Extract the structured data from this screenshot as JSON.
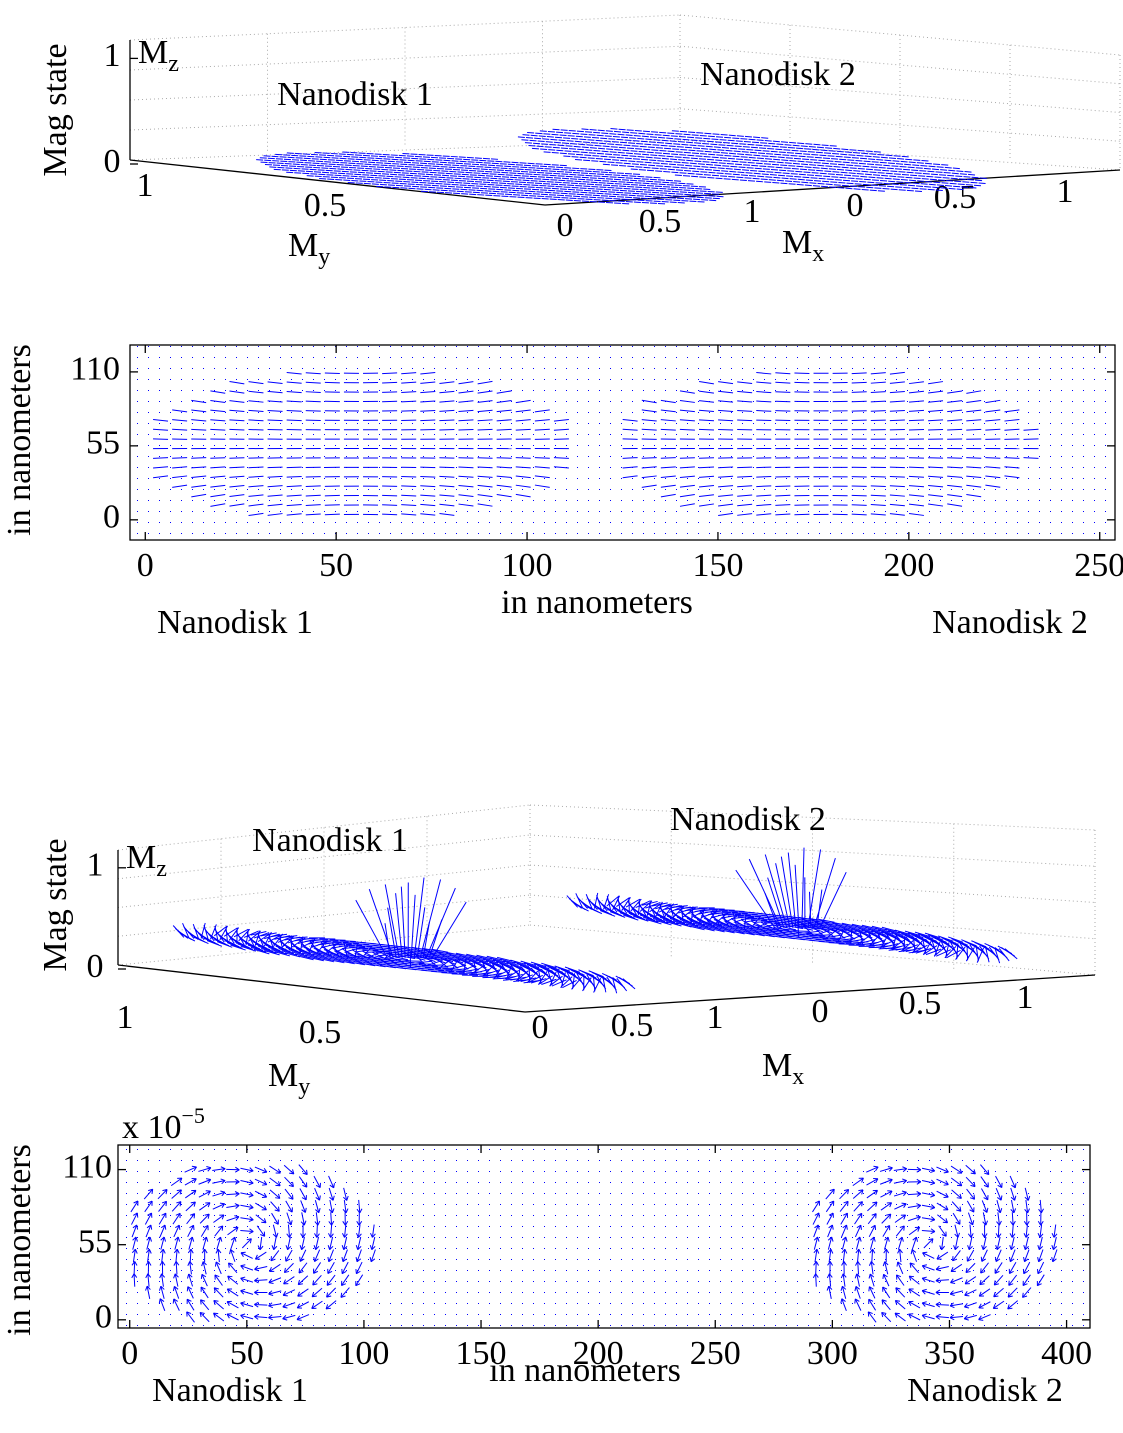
{
  "chart_data": [
    {
      "type": "quiver3d",
      "color": "#0000ff",
      "ylabel": "Mag state",
      "zlabel": {
        "base": "M",
        "sub": "z"
      },
      "zticks": [
        0,
        1
      ],
      "mylabel": {
        "base": "M",
        "sub": "y"
      },
      "myticks": [
        1,
        0.5
      ],
      "mxlabel": {
        "base": "M",
        "sub": "x"
      },
      "mxticks": [
        0,
        0.5,
        1,
        0,
        0.5,
        1
      ],
      "annotations": [
        "Nanodisk 1",
        "Nanodisk 2"
      ]
    },
    {
      "type": "quiver",
      "color": "#0000ff",
      "xlabel": "in nanometers",
      "ylabel": "in nanometers",
      "xlim": [
        -4,
        254
      ],
      "ylim": [
        -15,
        130
      ],
      "xticks": [
        0,
        50,
        100,
        150,
        200,
        250
      ],
      "yticks": [
        0,
        55,
        110
      ],
      "annotations": [
        "Nanodisk 1",
        "Nanodisk 2"
      ]
    },
    {
      "type": "quiver3d",
      "color": "#0000ff",
      "ylabel": "Mag state",
      "zlabel": {
        "base": "M",
        "sub": "z"
      },
      "zticks": [
        0,
        1
      ],
      "mylabel": {
        "base": "M",
        "sub": "y"
      },
      "myticks": [
        1,
        0.5
      ],
      "mxlabel": {
        "base": "M",
        "sub": "x"
      },
      "mxticks": [
        0,
        0.5,
        1,
        0,
        0.5,
        1
      ],
      "annotations": [
        "Nanodisk 1",
        "Nanodisk 2"
      ]
    },
    {
      "type": "quiver",
      "color": "#0000ff",
      "xlabel": "in nanometers",
      "ylabel": "in nanometers",
      "multiplier": {
        "base": "x 10",
        "sup": "−5"
      },
      "xlim": [
        -5,
        410
      ],
      "ylim": [
        -6,
        128
      ],
      "xticks": [
        0,
        50,
        100,
        150,
        200,
        250,
        300,
        350,
        400
      ],
      "yticks": [
        0,
        55,
        110
      ],
      "annotations": [
        "Nanodisk 1",
        "Nanodisk 2"
      ]
    }
  ]
}
